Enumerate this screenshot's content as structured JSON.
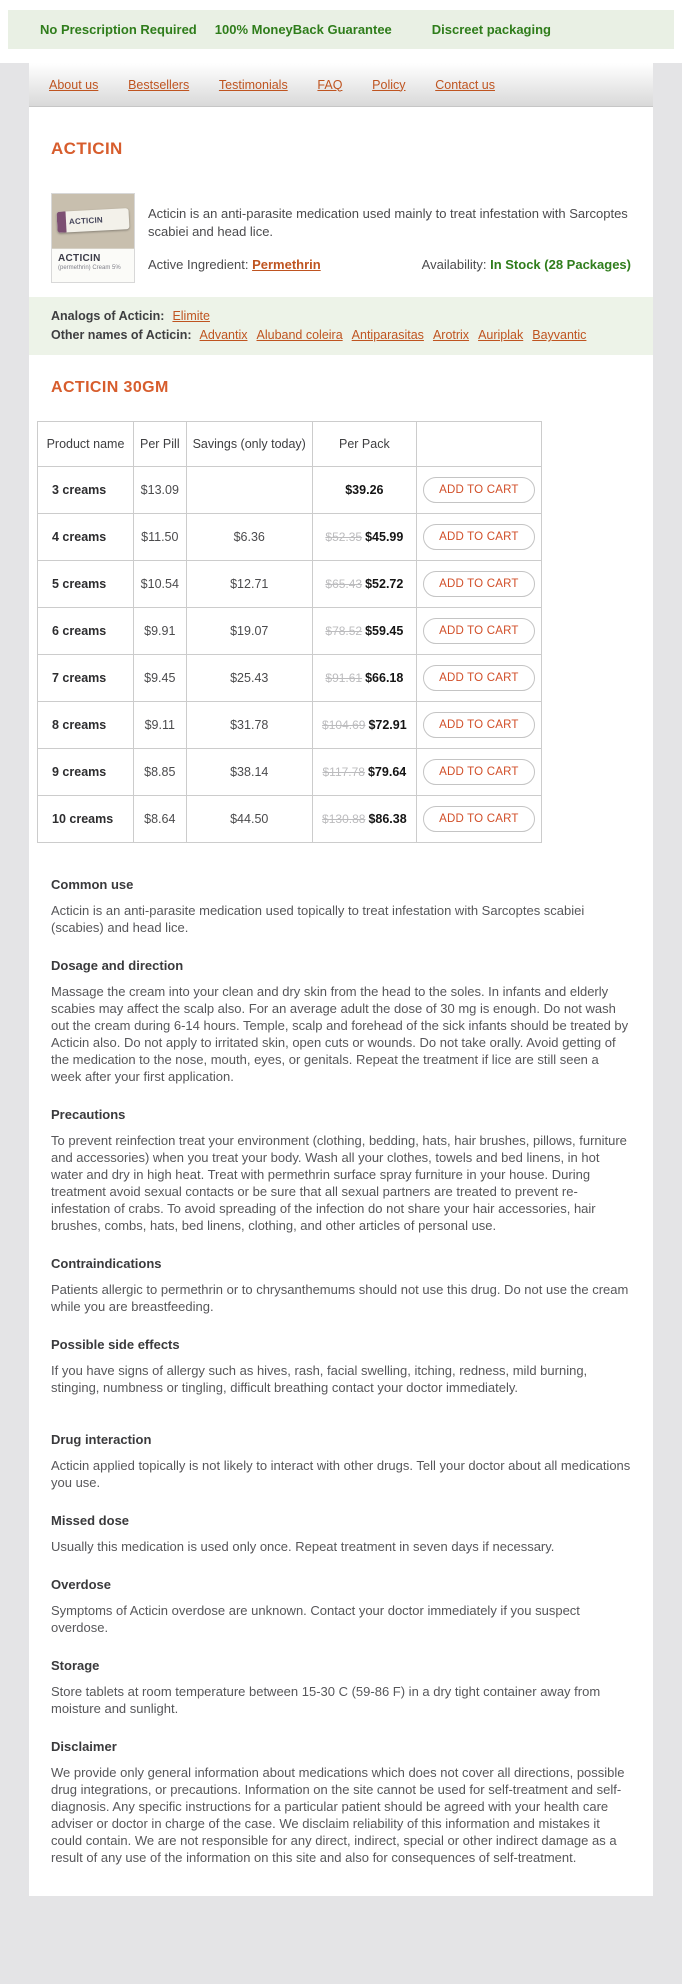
{
  "colors": {
    "accent_link": "#bf5420",
    "accent_heading": "#d75d2d",
    "accent_button": "#d14e28",
    "green_text": "#2f7d1b",
    "green_bg": "#e9f0e4",
    "strip_bg": "#edf3e8",
    "page_bg": "#e4e4e6",
    "table_border": "#cccccc",
    "old_price": "#bcbcbe",
    "body_text": "#57575a",
    "heading_text": "#3a3a3c"
  },
  "topbar": {
    "items": [
      "No Prescription Required",
      "100% MoneyBack Guarantee",
      "Discreet packaging"
    ]
  },
  "nav": {
    "items": [
      "About us",
      "Bestsellers",
      "Testimonials",
      "FAQ",
      "Policy",
      "Contact us"
    ]
  },
  "product": {
    "title": "ACTICIN",
    "description": "Acticin is an anti-parasite medication used mainly to treat infestation with Sarcoptes scabiei and head lice.",
    "active_ingredient_label": "Active Ingredient:",
    "active_ingredient": "Permethrin",
    "availability_label": "Availability:",
    "availability": "In Stock (28 Packages)",
    "image": {
      "tube_label": "ACTICIN",
      "box_line1": "ACTICIN",
      "box_line2": "(permethrin) Cream 5%"
    }
  },
  "analogs": {
    "label": "Analogs of Acticin:",
    "links": [
      "Elimite"
    ]
  },
  "other_names": {
    "label": "Other names of Acticin:",
    "links": [
      "Advantix",
      "Aluband coleira",
      "Antiparasitas",
      "Arotrix",
      "Auriplak",
      "Bayvantic"
    ]
  },
  "pack_section": {
    "title": "ACTICIN 30GM"
  },
  "table": {
    "headers": [
      "Product name",
      "Per Pill",
      "Savings (only today)",
      "Per Pack",
      ""
    ],
    "add_to_cart_label": "ADD TO CART",
    "rows": [
      {
        "name": "3 creams",
        "per_pill": "$13.09",
        "savings": "",
        "old_price": "",
        "price": "$39.26"
      },
      {
        "name": "4 creams",
        "per_pill": "$11.50",
        "savings": "$6.36",
        "old_price": "$52.35",
        "price": "$45.99"
      },
      {
        "name": "5 creams",
        "per_pill": "$10.54",
        "savings": "$12.71",
        "old_price": "$65.43",
        "price": "$52.72"
      },
      {
        "name": "6 creams",
        "per_pill": "$9.91",
        "savings": "$19.07",
        "old_price": "$78.52",
        "price": "$59.45"
      },
      {
        "name": "7 creams",
        "per_pill": "$9.45",
        "savings": "$25.43",
        "old_price": "$91.61",
        "price": "$66.18"
      },
      {
        "name": "8 creams",
        "per_pill": "$9.11",
        "savings": "$31.78",
        "old_price": "$104.69",
        "price": "$72.91"
      },
      {
        "name": "9 creams",
        "per_pill": "$8.85",
        "savings": "$38.14",
        "old_price": "$117.78",
        "price": "$79.64"
      },
      {
        "name": "10 creams",
        "per_pill": "$8.64",
        "savings": "$44.50",
        "old_price": "$130.88",
        "price": "$86.38"
      }
    ]
  },
  "sections": [
    {
      "heading": "Common use",
      "body": "Acticin is an anti-parasite medication used topically to treat infestation with Sarcoptes scabiei (scabies) and head lice."
    },
    {
      "heading": "Dosage and direction",
      "body": "Massage the cream into your clean and dry skin from the head to the soles. In infants and elderly scabies may affect the scalp also. For an average adult the dose of 30 mg is enough. Do not wash out the cream during 6-14 hours. Temple, scalp and forehead of the sick infants should be treated by Acticin also. Do not apply to irritated skin, open cuts or wounds. Do not take orally. Avoid getting of the medication to the nose, mouth, eyes, or genitals. Repeat the treatment if lice are still seen a week after your first application."
    },
    {
      "heading": "Precautions",
      "body": "To prevent reinfection treat your environment (clothing, bedding, hats, hair brushes, pillows, furniture and accessories) when you treat your body. Wash all your clothes, towels and bed linens, in hot water and dry in high heat. Treat with permethrin surface spray furniture in your house. During treatment avoid sexual contacts or be sure that all sexual partners are treated to prevent re-infestation of crabs. To avoid spreading of the infection do not share your hair accessories, hair brushes, combs, hats, bed linens, clothing, and other articles of personal use."
    },
    {
      "heading": "Contraindications",
      "body": "Patients allergic to permethrin or to chrysanthemums should not use this drug. Do not use the cream while you are breastfeeding."
    },
    {
      "heading": "Possible side effects",
      "body": "If you have signs of allergy such as hives, rash, facial swelling, itching, redness, mild burning, stinging, numbness or tingling, difficult breathing contact your doctor immediately."
    },
    {
      "heading": "Drug interaction",
      "top_gap": true,
      "body": "Acticin applied topically is not likely to interact with other drugs. Tell your doctor about all medications you use."
    },
    {
      "heading": "Missed dose",
      "body": "Usually this medication is used only once. Repeat treatment in seven days if necessary."
    },
    {
      "heading": "Overdose",
      "body": "Symptoms of Acticin overdose are unknown. Contact your doctor immediately if you suspect overdose."
    },
    {
      "heading": "Storage",
      "body": "Store tablets at room temperature between 15-30 C (59-86 F) in a dry tight container away from moisture and sunlight."
    },
    {
      "heading": "Disclaimer",
      "body": "We provide only general information about medications which does not cover all directions, possible drug integrations, or precautions. Information on the site cannot be used for self-treatment and self-diagnosis. Any specific instructions for a particular patient should be agreed with your health care adviser or doctor in charge of the case. We disclaim reliability of this information and mistakes it could contain. We are not responsible for any direct, indirect, special or other indirect damage as a result of any use of the information on this site and also for consequences of self-treatment."
    }
  ]
}
